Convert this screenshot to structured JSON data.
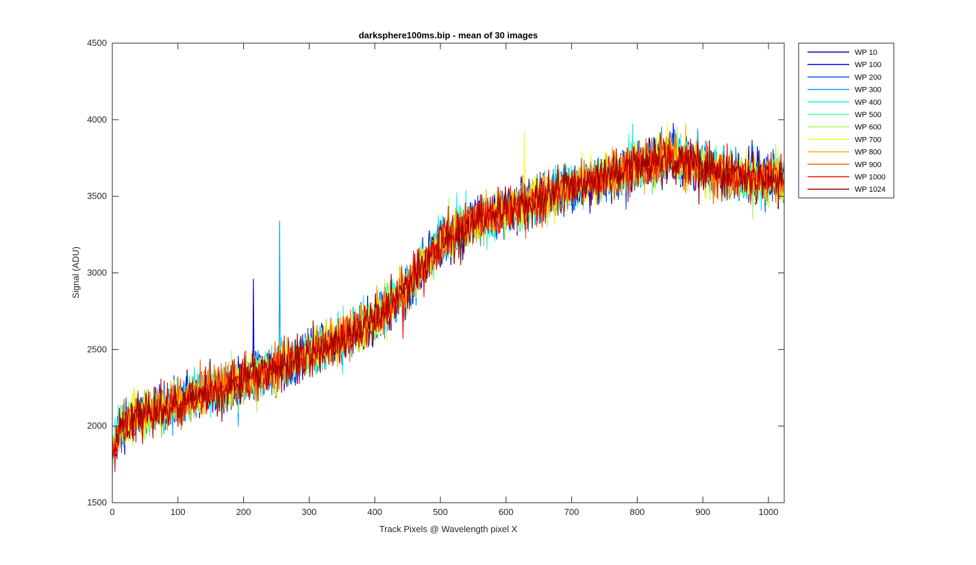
{
  "chart_data": {
    "type": "line",
    "title": "darksphere100ms.bip - mean of 30 images",
    "xlabel": "Track Pixels @ Wavelength pixel X",
    "ylabel": "Signal (ADU)",
    "xlim": [
      0,
      1024
    ],
    "ylim": [
      1500,
      4500
    ],
    "xticks": [
      0,
      100,
      200,
      300,
      400,
      500,
      600,
      700,
      800,
      900,
      1000
    ],
    "yticks": [
      1500,
      2000,
      2500,
      3000,
      3500,
      4000,
      4500
    ],
    "grid": false,
    "legend_position": "outside-top-right",
    "trend": {
      "x": [
        0,
        10,
        50,
        100,
        150,
        200,
        250,
        300,
        350,
        400,
        450,
        500,
        550,
        600,
        650,
        700,
        750,
        800,
        850,
        900,
        950,
        1000,
        1024
      ],
      "y": [
        1800,
        2000,
        2080,
        2150,
        2230,
        2300,
        2380,
        2470,
        2570,
        2700,
        2900,
        3200,
        3330,
        3400,
        3480,
        3560,
        3620,
        3700,
        3760,
        3680,
        3630,
        3620,
        3600
      ]
    },
    "noise_amplitude_adu": 130,
    "series": [
      {
        "name": "WP 10",
        "color": "#00008f"
      },
      {
        "name": "WP 100",
        "color": "#0000df"
      },
      {
        "name": "WP 200",
        "color": "#0050ff"
      },
      {
        "name": "WP 300",
        "color": "#00a0ff"
      },
      {
        "name": "WP 400",
        "color": "#10f0ef"
      },
      {
        "name": "WP 500",
        "color": "#40ffbf"
      },
      {
        "name": "WP 600",
        "color": "#a0ff60"
      },
      {
        "name": "WP 700",
        "color": "#f0ff10"
      },
      {
        "name": "WP 800",
        "color": "#ffb000"
      },
      {
        "name": "WP 900",
        "color": "#ff6000"
      },
      {
        "name": "WP 1000",
        "color": "#ef1000"
      },
      {
        "name": "WP 1024",
        "color": "#a00000"
      }
    ],
    "annotations": [
      {
        "series": "WP 100",
        "x": 215,
        "y": 2960
      },
      {
        "series": "WP 300",
        "x": 255,
        "y": 3340
      },
      {
        "series": "WP 700",
        "x": 628,
        "y": 3920
      }
    ]
  }
}
